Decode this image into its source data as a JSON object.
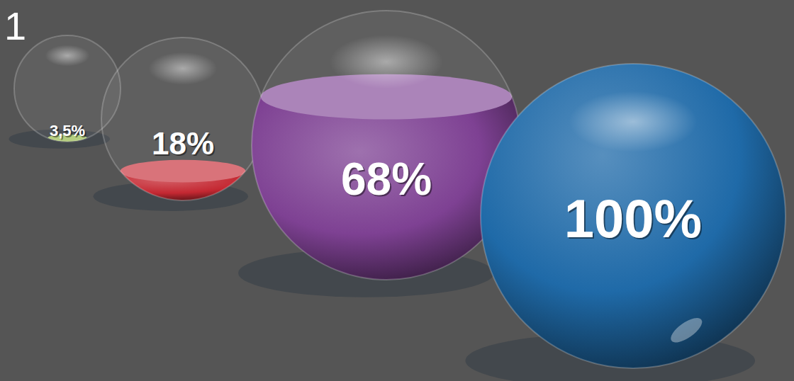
{
  "chart_data": {
    "type": "bar",
    "title": "1",
    "values": [
      3.5,
      18,
      68,
      100
    ],
    "value_labels": [
      "3,5%",
      "18%",
      "68%",
      "100%"
    ],
    "colors": [
      "#8db33a",
      "#c42832",
      "#7e4193",
      "#1f6aa8"
    ],
    "data_labels": true,
    "tick_labels": false
  }
}
